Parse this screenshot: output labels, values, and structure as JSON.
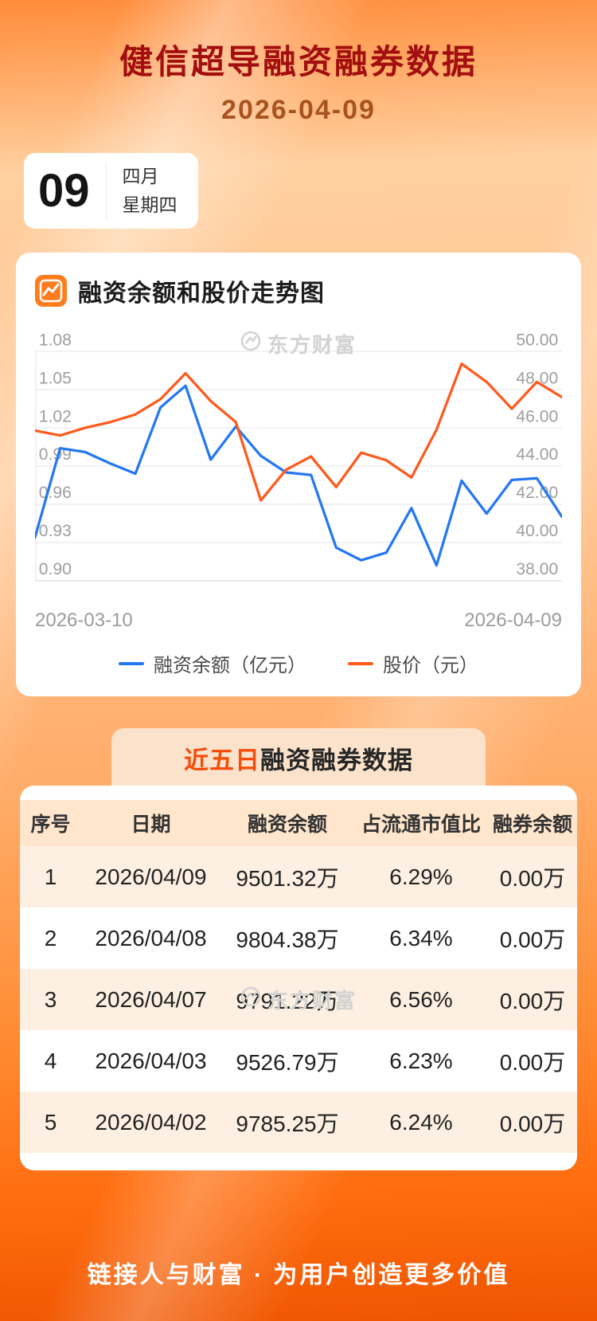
{
  "page": {
    "title": "健信超导融资融券数据",
    "date": "2026-04-09",
    "footer": "链接人与财富 · 为用户创造更多价值"
  },
  "date_badge": {
    "day": "09",
    "month": "四月",
    "weekday": "星期四"
  },
  "icons": {
    "heading": "chart-line-icon",
    "watermark": "eastmoney-logo-icon"
  },
  "colors": {
    "title_red": "#a30f0f",
    "date_brown": "#a85320",
    "financing_line_blue": "#2478f2",
    "price_line_orange": "#ff5a1e",
    "banner_highlight": "#f84c0b",
    "header_icon_orange": "#ff7d1e"
  },
  "chart_card": {
    "heading": "融资余额和股价走势图",
    "watermark": "东方财富",
    "legend": [
      {
        "label": "融资余额（亿元）",
        "color": "#2478f2"
      },
      {
        "label": "股价（元）",
        "color": "#ff5a1e"
      }
    ]
  },
  "chart_data": {
    "type": "line",
    "x_count": 22,
    "x_labels": [
      "2026-03-10",
      "2026-04-09"
    ],
    "left_axis": {
      "ticks": [
        "1.08",
        "1.05",
        "1.02",
        "0.99",
        "0.96",
        "0.93",
        "0.90"
      ],
      "min": 0.9,
      "max": 1.08
    },
    "right_axis": {
      "ticks": [
        "50.00",
        "48.00",
        "46.00",
        "44.00",
        "42.00",
        "40.00",
        "38.00"
      ],
      "min": 38,
      "max": 50
    },
    "series": [
      {
        "name": "融资余额（亿元）",
        "axis": "left",
        "color": "#2478f2",
        "values": [
          0.934,
          1.004,
          1.001,
          0.992,
          0.984,
          1.036,
          1.053,
          0.995,
          1.021,
          0.998,
          0.985,
          0.983,
          0.926,
          0.916,
          0.922,
          0.957,
          0.912,
          0.9785,
          0.9527,
          0.9791,
          0.9804,
          0.9501
        ]
      },
      {
        "name": "股价（元）",
        "axis": "right",
        "color": "#ff5a1e",
        "values": [
          45.85,
          45.6,
          46.0,
          46.3,
          46.7,
          47.5,
          48.85,
          47.4,
          46.3,
          42.2,
          43.8,
          44.5,
          42.9,
          44.7,
          44.3,
          43.4,
          45.9,
          49.35,
          48.4,
          47.0,
          48.4,
          47.6
        ]
      }
    ]
  },
  "table_card": {
    "title_highlight": "近五日",
    "title_rest": "融资融券数据",
    "watermark": "东方财富",
    "columns": [
      "序号",
      "日期",
      "融资余额",
      "占流通市值比",
      "融券余额"
    ],
    "rows": [
      [
        "1",
        "2026/04/09",
        "9501.32万",
        "6.29%",
        "0.00万"
      ],
      [
        "2",
        "2026/04/08",
        "9804.38万",
        "6.34%",
        "0.00万"
      ],
      [
        "3",
        "2026/04/07",
        "9791.22万",
        "6.56%",
        "0.00万"
      ],
      [
        "4",
        "2026/04/03",
        "9526.79万",
        "6.23%",
        "0.00万"
      ],
      [
        "5",
        "2026/04/02",
        "9785.25万",
        "6.24%",
        "0.00万"
      ]
    ]
  }
}
